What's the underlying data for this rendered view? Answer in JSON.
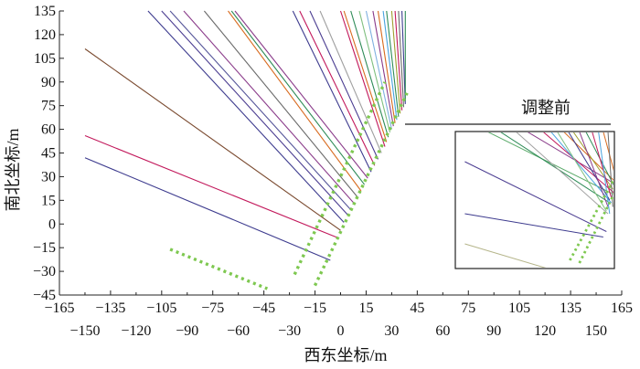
{
  "chart_data": {
    "type": "line",
    "title": "",
    "xlabel": "西东坐标/m",
    "ylabel": "南北坐标/m",
    "xlim": [
      -165,
      165
    ],
    "ylim": [
      -45,
      135
    ],
    "grid": false,
    "x_ticks_top_row": [
      "−165",
      "−135",
      "−105",
      "−75",
      "−45",
      "−15",
      "15",
      "45",
      "75",
      "105",
      "135",
      "165"
    ],
    "x_ticks_bottom_row": [
      "−150",
      "−120",
      "−90",
      "−60",
      "−30",
      "0",
      "30",
      "60",
      "90",
      "120",
      "150"
    ],
    "y_ticks": [
      "135",
      "120",
      "105",
      "90",
      "75",
      "60",
      "45",
      "30",
      "15",
      "0",
      "−15",
      "−30",
      "−45"
    ],
    "series": [
      {
        "color": "#3d3b8e",
        "values": [
          [
            -150,
            42
          ],
          [
            -6,
            -23
          ]
        ]
      },
      {
        "color": "#c2185b",
        "values": [
          [
            -150,
            56
          ],
          [
            -1,
            -9
          ]
        ]
      },
      {
        "color": "#7a4a2f",
        "values": [
          [
            -150,
            111
          ],
          [
            0,
            -4
          ]
        ]
      },
      {
        "color": "#3d3b8e",
        "values": [
          [
            -113,
            135
          ],
          [
            2,
            1
          ]
        ]
      },
      {
        "color": "#4b3d91",
        "values": [
          [
            -105,
            135
          ],
          [
            4,
            6
          ]
        ]
      },
      {
        "color": "#555599",
        "values": [
          [
            -100,
            135
          ],
          [
            6,
            9
          ]
        ]
      },
      {
        "color": "#8a3b8a",
        "values": [
          [
            -92,
            135
          ],
          [
            8,
            13
          ]
        ]
      },
      {
        "color": "#6a6a6a",
        "values": [
          [
            -80,
            135
          ],
          [
            10,
            17
          ]
        ]
      },
      {
        "color": "#d86b1f",
        "values": [
          [
            -66,
            135
          ],
          [
            12,
            21
          ]
        ]
      },
      {
        "color": "#2e8b57",
        "values": [
          [
            -64,
            135
          ],
          [
            14,
            25
          ]
        ]
      },
      {
        "color": "#8a3b8a",
        "values": [
          [
            -62,
            135
          ],
          [
            16,
            29
          ]
        ]
      },
      {
        "color": "#3d3b8e",
        "values": [
          [
            -28,
            135
          ],
          [
            18,
            33
          ]
        ]
      },
      {
        "color": "#c2185b",
        "values": [
          [
            -24,
            135
          ],
          [
            20,
            37
          ]
        ]
      },
      {
        "color": "#4b3d91",
        "values": [
          [
            -18,
            135
          ],
          [
            22,
            41
          ]
        ]
      },
      {
        "color": "#a0a0a0",
        "values": [
          [
            -12,
            135
          ],
          [
            24,
            45
          ]
        ]
      },
      {
        "color": "#c2185b",
        "values": [
          [
            0,
            135
          ],
          [
            26,
            49
          ]
        ]
      },
      {
        "color": "#d86b1f",
        "values": [
          [
            2,
            135
          ],
          [
            27,
            52
          ]
        ]
      },
      {
        "color": "#2e8b57",
        "values": [
          [
            6,
            135
          ],
          [
            28,
            55
          ]
        ]
      },
      {
        "color": "#7fbf7f",
        "values": [
          [
            11,
            135
          ],
          [
            29,
            58
          ]
        ]
      },
      {
        "color": "#7fb0e0",
        "values": [
          [
            15,
            135
          ],
          [
            30,
            60
          ]
        ]
      },
      {
        "color": "#8a3b8a",
        "values": [
          [
            19,
            135
          ],
          [
            31,
            62
          ]
        ]
      },
      {
        "color": "#d86b1f",
        "values": [
          [
            22,
            135
          ],
          [
            32,
            64
          ]
        ]
      },
      {
        "color": "#4aa3df",
        "values": [
          [
            25,
            135
          ],
          [
            33,
            66
          ]
        ]
      },
      {
        "color": "#2e8b57",
        "values": [
          [
            27,
            135
          ],
          [
            34,
            68
          ]
        ]
      },
      {
        "color": "#9e9e2f",
        "values": [
          [
            30,
            135
          ],
          [
            35,
            70
          ]
        ]
      },
      {
        "color": "#c2185b",
        "values": [
          [
            32,
            135
          ],
          [
            36,
            72
          ]
        ]
      },
      {
        "color": "#6a6a6a",
        "values": [
          [
            34,
            135
          ],
          [
            37,
            74
          ]
        ]
      },
      {
        "color": "#3d3b8e",
        "values": [
          [
            36,
            135
          ],
          [
            38,
            76
          ]
        ]
      },
      {
        "color": "#2e8b57",
        "values": [
          [
            38,
            135
          ],
          [
            38,
            78
          ]
        ]
      },
      {
        "color": "#7ec850",
        "style": "dotted",
        "values": [
          [
            -100,
            -16
          ],
          [
            -43,
            -41
          ]
        ]
      },
      {
        "color": "#7ec850",
        "style": "dotted",
        "values": [
          [
            -27,
            -32
          ],
          [
            26,
            90
          ]
        ]
      },
      {
        "color": "#7ec850",
        "style": "dotted",
        "values": [
          [
            -15,
            -39
          ],
          [
            39,
            83
          ]
        ]
      }
    ],
    "inset": {
      "title": "调整前",
      "series": [
        {
          "color": "#4b3d91",
          "values": [
            [
              0.06,
              0.22
            ],
            [
              0.95,
              0.73
            ]
          ]
        },
        {
          "color": "#3d3b8e",
          "values": [
            [
              0.06,
              0.6
            ],
            [
              0.93,
              0.77
            ]
          ]
        },
        {
          "color": "#b5b58a",
          "values": [
            [
              0.06,
              0.82
            ],
            [
              0.58,
              1.0
            ]
          ]
        },
        {
          "color": "#5aaa6a",
          "values": [
            [
              0.2,
              0.0
            ],
            [
              0.98,
              0.45
            ]
          ]
        },
        {
          "color": "#2e8b57",
          "values": [
            [
              0.28,
              0.0
            ],
            [
              0.97,
              0.52
            ]
          ]
        },
        {
          "color": "#a0a0a0",
          "values": [
            [
              0.38,
              0.0
            ],
            [
              0.96,
              0.6
            ]
          ]
        },
        {
          "color": "#8a3b8a",
          "values": [
            [
              0.45,
              0.0
            ],
            [
              1.0,
              0.38
            ]
          ]
        },
        {
          "color": "#c2185b",
          "values": [
            [
              0.55,
              0.0
            ],
            [
              1.0,
              0.45
            ]
          ]
        },
        {
          "color": "#4aa3df",
          "values": [
            [
              0.6,
              0.0
            ],
            [
              0.98,
              0.52
            ]
          ]
        },
        {
          "color": "#7fbf7f",
          "values": [
            [
              0.64,
              0.0
            ],
            [
              0.95,
              0.58
            ]
          ]
        },
        {
          "color": "#d86b1f",
          "values": [
            [
              0.68,
              0.0
            ],
            [
              1.0,
              0.36
            ]
          ]
        },
        {
          "color": "#3d3b8e",
          "values": [
            [
              0.71,
              0.0
            ],
            [
              0.97,
              0.5
            ]
          ]
        },
        {
          "color": "#9e9e2f",
          "values": [
            [
              0.74,
              0.0
            ],
            [
              0.99,
              0.42
            ]
          ]
        },
        {
          "color": "#8a3b8a",
          "values": [
            [
              0.78,
              0.0
            ],
            [
              0.96,
              0.55
            ]
          ]
        },
        {
          "color": "#2e8b57",
          "values": [
            [
              0.82,
              0.0
            ],
            [
              1.0,
              0.4
            ]
          ]
        },
        {
          "color": "#c2185b",
          "values": [
            [
              0.86,
              0.0
            ],
            [
              0.98,
              0.48
            ]
          ]
        },
        {
          "color": "#4aa3df",
          "values": [
            [
              0.9,
              0.0
            ],
            [
              0.97,
              0.6
            ]
          ]
        },
        {
          "color": "#d86b1f",
          "values": [
            [
              0.93,
              0.0
            ],
            [
              1.0,
              0.3
            ]
          ]
        },
        {
          "color": "#6a6a6a",
          "values": [
            [
              0.96,
              0.0
            ],
            [
              0.99,
              0.55
            ]
          ]
        },
        {
          "color": "#7ec850",
          "style": "dotted",
          "values": [
            [
              0.72,
              0.94
            ],
            [
              1.0,
              0.34
            ]
          ]
        },
        {
          "color": "#7ec850",
          "style": "dotted",
          "values": [
            [
              0.78,
              0.96
            ],
            [
              1.0,
              0.45
            ]
          ]
        }
      ]
    }
  }
}
